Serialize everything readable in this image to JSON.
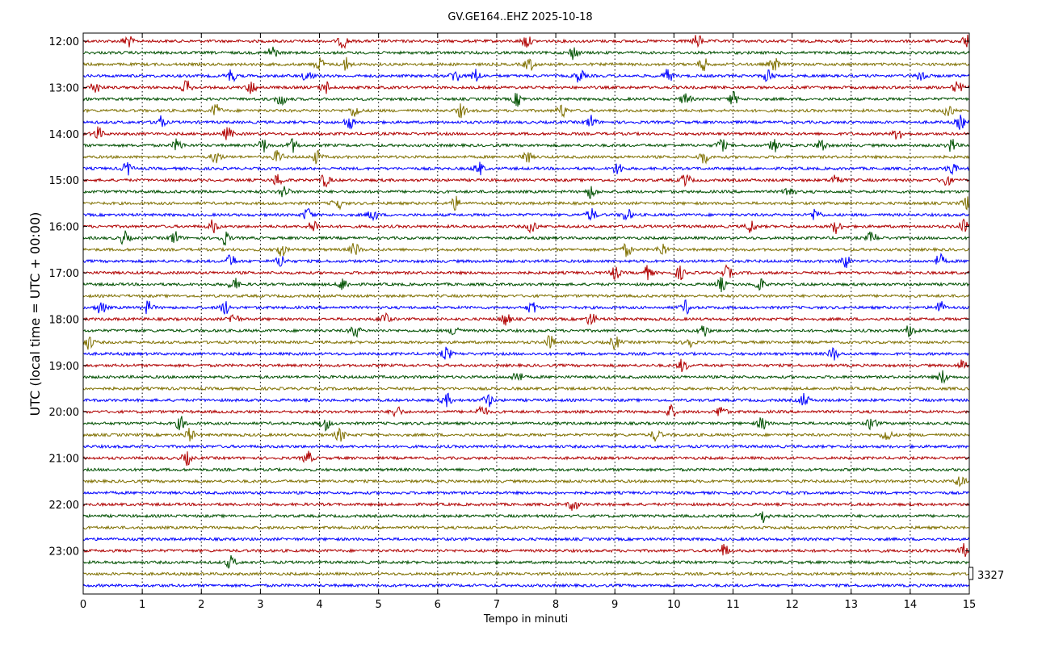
{
  "chart_data": {
    "type": "line",
    "title": "GV.GE164..EHZ 2025-10-18",
    "xlabel": "Tempo in minuti",
    "ylabel": "UTC (local time = UTC + 00:00)",
    "xlim": [
      0,
      15
    ],
    "x_ticks": [
      "0",
      "1",
      "2",
      "3",
      "4",
      "5",
      "6",
      "7",
      "8",
      "9",
      "10",
      "11",
      "12",
      "13",
      "14",
      "15"
    ],
    "y_ticks": [
      "12:00",
      "13:00",
      "14:00",
      "15:00",
      "16:00",
      "17:00",
      "18:00",
      "19:00",
      "20:00",
      "21:00",
      "22:00",
      "23:00"
    ],
    "scale_label": "3327",
    "grid": true,
    "trace_colors": [
      "#b00000",
      "#005000",
      "#7f7000",
      "#0000ff"
    ],
    "trace_interval_minutes": 15,
    "traces": [
      {
        "start": "12:00",
        "color": "#b00000",
        "events": [
          0.75,
          4.4,
          7.5,
          10.4,
          14.95
        ]
      },
      {
        "start": "12:15",
        "color": "#005000",
        "events": [
          3.2,
          8.3
        ]
      },
      {
        "start": "12:30",
        "color": "#7f7000",
        "events": [
          4.0,
          4.45,
          7.55,
          10.5,
          11.7
        ]
      },
      {
        "start": "12:45",
        "color": "#0000ff",
        "events": [
          2.5,
          3.8,
          6.3,
          6.65,
          8.4,
          9.9,
          11.6,
          14.2
        ]
      },
      {
        "start": "13:00",
        "color": "#b00000",
        "events": [
          0.2,
          1.75,
          2.85,
          4.1,
          14.8
        ]
      },
      {
        "start": "13:15",
        "color": "#005000",
        "events": [
          3.35,
          7.35,
          10.2,
          11.0
        ]
      },
      {
        "start": "13:30",
        "color": "#7f7000",
        "events": [
          2.25,
          4.6,
          6.4,
          8.1,
          14.65
        ]
      },
      {
        "start": "13:45",
        "color": "#0000ff",
        "events": [
          1.3,
          4.5,
          8.6,
          14.85
        ]
      },
      {
        "start": "14:00",
        "color": "#b00000",
        "events": [
          0.25,
          2.45,
          13.8
        ]
      },
      {
        "start": "14:15",
        "color": "#005000",
        "events": [
          1.6,
          3.05,
          3.55,
          10.8,
          11.7,
          12.5,
          14.7
        ]
      },
      {
        "start": "14:30",
        "color": "#7f7000",
        "events": [
          2.25,
          3.3,
          3.95,
          7.5,
          10.5
        ]
      },
      {
        "start": "14:45",
        "color": "#0000ff",
        "events": [
          0.75,
          6.7,
          9.05,
          14.7
        ]
      },
      {
        "start": "15:00",
        "color": "#b00000",
        "events": [
          3.3,
          4.1,
          10.2,
          12.75,
          14.6
        ]
      },
      {
        "start": "15:15",
        "color": "#005000",
        "events": [
          3.4,
          8.6,
          11.95
        ]
      },
      {
        "start": "15:30",
        "color": "#7f7000",
        "events": [
          4.3,
          6.3,
          14.95
        ]
      },
      {
        "start": "15:45",
        "color": "#0000ff",
        "events": [
          3.8,
          4.9,
          8.6,
          9.2,
          12.4
        ]
      },
      {
        "start": "16:00",
        "color": "#b00000",
        "events": [
          2.2,
          3.9,
          7.6,
          11.3,
          12.75,
          14.9
        ]
      },
      {
        "start": "16:15",
        "color": "#005000",
        "events": [
          0.7,
          1.55,
          2.4,
          13.35
        ]
      },
      {
        "start": "16:30",
        "color": "#7f7000",
        "events": [
          3.35,
          4.6,
          9.2,
          9.8
        ]
      },
      {
        "start": "16:45",
        "color": "#0000ff",
        "events": [
          2.5,
          3.35,
          12.9,
          14.5
        ]
      },
      {
        "start": "17:00",
        "color": "#b00000",
        "events": [
          9.0,
          9.55,
          10.1,
          10.9
        ]
      },
      {
        "start": "17:15",
        "color": "#005000",
        "events": [
          2.55,
          4.4,
          10.8,
          11.45
        ]
      },
      {
        "start": "17:30",
        "color": "#7f7000",
        "events": []
      },
      {
        "start": "17:45",
        "color": "#0000ff",
        "events": [
          0.3,
          1.1,
          2.4,
          7.6,
          10.2,
          14.5
        ]
      },
      {
        "start": "18:00",
        "color": "#b00000",
        "events": [
          2.55,
          5.1,
          7.15,
          8.6
        ]
      },
      {
        "start": "18:15",
        "color": "#005000",
        "events": [
          4.6,
          6.3,
          10.5,
          14.0
        ]
      },
      {
        "start": "18:30",
        "color": "#7f7000",
        "events": [
          0.1,
          7.9,
          9.0,
          10.25
        ]
      },
      {
        "start": "18:45",
        "color": "#0000ff",
        "events": [
          6.15,
          12.7
        ]
      },
      {
        "start": "19:00",
        "color": "#b00000",
        "events": [
          10.15,
          14.9
        ]
      },
      {
        "start": "19:15",
        "color": "#005000",
        "events": [
          7.35,
          14.55
        ]
      },
      {
        "start": "19:30",
        "color": "#7f7000",
        "events": []
      },
      {
        "start": "19:45",
        "color": "#0000ff",
        "events": [
          6.15,
          6.85,
          12.2
        ]
      },
      {
        "start": "20:00",
        "color": "#b00000",
        "events": [
          5.3,
          6.75,
          9.95,
          10.8
        ]
      },
      {
        "start": "20:15",
        "color": "#005000",
        "events": [
          1.65,
          4.1,
          11.5,
          13.35
        ]
      },
      {
        "start": "20:30",
        "color": "#7f7000",
        "events": [
          1.8,
          4.35,
          9.7,
          13.6
        ]
      },
      {
        "start": "20:45",
        "color": "#0000ff",
        "events": []
      },
      {
        "start": "21:00",
        "color": "#b00000",
        "events": [
          1.75,
          3.8
        ]
      },
      {
        "start": "21:15",
        "color": "#005000",
        "events": []
      },
      {
        "start": "21:30",
        "color": "#7f7000",
        "events": [
          14.85
        ]
      },
      {
        "start": "21:45",
        "color": "#0000ff",
        "events": []
      },
      {
        "start": "22:00",
        "color": "#b00000",
        "events": [
          8.3
        ]
      },
      {
        "start": "22:15",
        "color": "#005000",
        "events": [
          11.5
        ]
      },
      {
        "start": "22:30",
        "color": "#7f7000",
        "events": []
      },
      {
        "start": "22:45",
        "color": "#0000ff",
        "events": []
      },
      {
        "start": "23:00",
        "color": "#b00000",
        "events": [
          10.85,
          14.9
        ]
      },
      {
        "start": "23:15",
        "color": "#005000",
        "events": [
          2.5
        ]
      },
      {
        "start": "23:30",
        "color": "#7f7000",
        "events": []
      },
      {
        "start": "23:45",
        "color": "#0000ff",
        "events": []
      }
    ]
  }
}
